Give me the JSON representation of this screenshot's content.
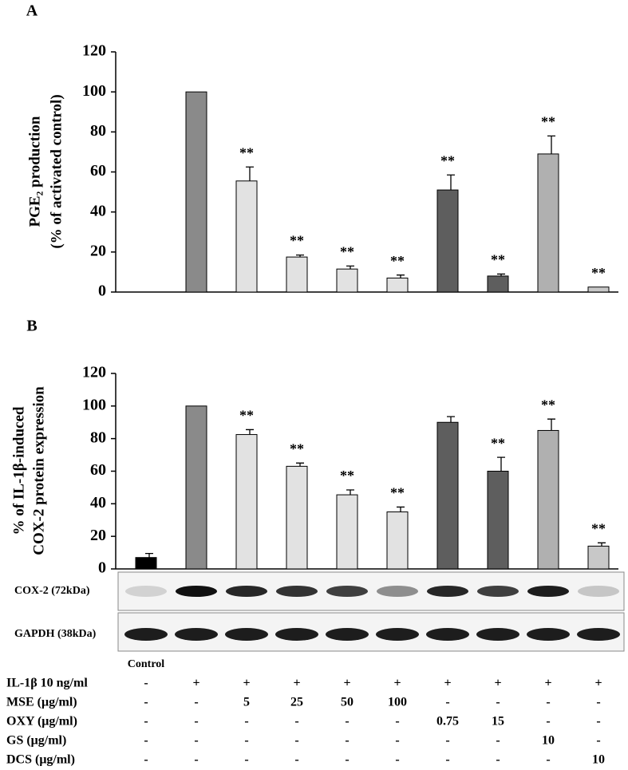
{
  "chart_data": [
    {
      "type": "bar",
      "panel": "A",
      "ylabel": [
        "PGE₂ production",
        "(% of activated control)"
      ],
      "categories": [
        null,
        null,
        null,
        null,
        null,
        null,
        null,
        null,
        null,
        null
      ],
      "values": [
        0,
        100,
        55.5,
        17.5,
        11.5,
        7,
        51,
        8,
        69,
        2.5
      ],
      "errors": [
        null,
        null,
        7,
        1,
        1.5,
        1.5,
        7.5,
        1,
        9,
        null
      ],
      "significance": [
        null,
        null,
        "**",
        "**",
        "**",
        "**",
        "**",
        "**",
        "**",
        "**"
      ],
      "colors": [
        "#000000",
        "#8a8a8a",
        "#e2e2e2",
        "#e2e2e2",
        "#e2e2e2",
        "#e2e2e2",
        "#5e5e5e",
        "#5e5e5e",
        "#b0b0b0",
        "#c8c8c8"
      ],
      "ylim": [
        0,
        120
      ],
      "yticks": [
        0,
        20,
        40,
        60,
        80,
        100,
        120
      ]
    },
    {
      "type": "bar",
      "panel": "B",
      "ylabel": [
        "% of IL-1β-induced",
        "COX-2 protein expression"
      ],
      "categories": [
        null,
        null,
        null,
        null,
        null,
        null,
        null,
        null,
        null,
        null
      ],
      "values": [
        7,
        100,
        82.5,
        63,
        45.5,
        35,
        90,
        60,
        85,
        14
      ],
      "errors": [
        2.5,
        null,
        3,
        2,
        3,
        3,
        3.5,
        8.5,
        7,
        2
      ],
      "significance": [
        null,
        null,
        "**",
        "**",
        "**",
        "**",
        null,
        "**",
        "**",
        "**"
      ],
      "colors": [
        "#000000",
        "#8a8a8a",
        "#e2e2e2",
        "#e2e2e2",
        "#e2e2e2",
        "#e2e2e2",
        "#5e5e5e",
        "#5e5e5e",
        "#b0b0b0",
        "#c8c8c8"
      ],
      "ylim": [
        0,
        120
      ],
      "yticks": [
        0,
        20,
        40,
        60,
        80,
        100,
        120
      ]
    }
  ],
  "blot": {
    "labels": [
      "COX-2 (72kDa)",
      "GAPDH (38kDa)"
    ]
  },
  "table": {
    "column_note": "Control",
    "rows": [
      [
        "IL-1β 10 ng/ml",
        "-",
        "+",
        "+",
        "+",
        "+",
        "+",
        "+",
        "+",
        "+",
        "+"
      ],
      [
        "MSE (μg/ml)",
        "-",
        "-",
        "5",
        "25",
        "50",
        "100",
        "-",
        "-",
        "-",
        "-"
      ],
      [
        "OXY (μg/ml)",
        "-",
        "-",
        "-",
        "-",
        "-",
        "-",
        "0.75",
        "15",
        "-",
        "-"
      ],
      [
        "GS    (μg/ml)",
        "-",
        "-",
        "-",
        "-",
        "-",
        "-",
        "-",
        "-",
        "10",
        "-"
      ],
      [
        "DCS  (μg/ml)",
        "-",
        "-",
        "-",
        "-",
        "-",
        "-",
        "-",
        "-",
        "-",
        "10"
      ]
    ]
  }
}
